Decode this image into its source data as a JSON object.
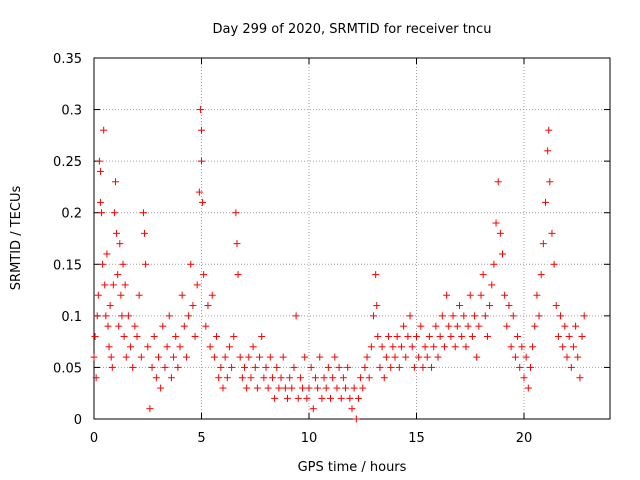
{
  "chart_data": {
    "type": "scatter",
    "title": "Day 299 of 2020, SRMTID for receiver tncu",
    "xlabel": "GPS time / hours",
    "ylabel": "SRMTID / TECUs",
    "xlim": [
      0,
      24
    ],
    "ylim": [
      0,
      0.35
    ],
    "x_ticks": [
      0,
      5,
      10,
      15,
      20
    ],
    "x_tick_labels": [
      "0",
      "5",
      "10",
      "15",
      "20"
    ],
    "y_ticks": [
      0,
      0.05,
      0.1,
      0.15,
      0.2,
      0.25,
      0.3,
      0.35
    ],
    "y_tick_labels": [
      "0",
      "0.05",
      "0.1",
      "0.15",
      "0.2",
      "0.25",
      "0.3",
      "0.35"
    ],
    "grid": true,
    "marker": "+",
    "series": [
      {
        "name": "SRMTID",
        "color": "#ff0000",
        "points": [
          [
            0.0,
            0.06
          ],
          [
            0.05,
            0.08
          ],
          [
            0.1,
            0.04
          ],
          [
            0.15,
            0.1
          ],
          [
            0.2,
            0.12
          ],
          [
            0.25,
            0.25
          ],
          [
            0.3,
            0.24
          ],
          [
            0.3,
            0.21
          ],
          [
            0.35,
            0.2
          ],
          [
            0.4,
            0.15
          ],
          [
            0.45,
            0.28
          ],
          [
            0.5,
            0.13
          ],
          [
            0.55,
            0.1
          ],
          [
            0.6,
            0.16
          ],
          [
            0.65,
            0.09
          ],
          [
            0.7,
            0.07
          ],
          [
            0.75,
            0.11
          ],
          [
            0.8,
            0.06
          ],
          [
            0.85,
            0.05
          ],
          [
            0.9,
            0.13
          ],
          [
            0.95,
            0.2
          ],
          [
            1.0,
            0.23
          ],
          [
            1.05,
            0.18
          ],
          [
            1.1,
            0.14
          ],
          [
            1.15,
            0.09
          ],
          [
            1.2,
            0.17
          ],
          [
            1.25,
            0.12
          ],
          [
            1.3,
            0.1
          ],
          [
            1.35,
            0.15
          ],
          [
            1.4,
            0.08
          ],
          [
            1.45,
            0.13
          ],
          [
            1.5,
            0.06
          ],
          [
            1.6,
            0.1
          ],
          [
            1.7,
            0.07
          ],
          [
            1.8,
            0.05
          ],
          [
            1.9,
            0.09
          ],
          [
            2.0,
            0.08
          ],
          [
            2.1,
            0.12
          ],
          [
            2.2,
            0.06
          ],
          [
            2.3,
            0.2
          ],
          [
            2.35,
            0.18
          ],
          [
            2.4,
            0.15
          ],
          [
            2.5,
            0.07
          ],
          [
            2.6,
            0.01
          ],
          [
            2.7,
            0.05
          ],
          [
            2.8,
            0.08
          ],
          [
            2.9,
            0.04
          ],
          [
            3.0,
            0.06
          ],
          [
            3.1,
            0.03
          ],
          [
            3.2,
            0.09
          ],
          [
            3.3,
            0.05
          ],
          [
            3.4,
            0.07
          ],
          [
            3.5,
            0.1
          ],
          [
            3.6,
            0.04
          ],
          [
            3.7,
            0.06
          ],
          [
            3.8,
            0.08
          ],
          [
            3.9,
            0.05
          ],
          [
            4.0,
            0.07
          ],
          [
            4.1,
            0.12
          ],
          [
            4.2,
            0.09
          ],
          [
            4.3,
            0.06
          ],
          [
            4.4,
            0.1
          ],
          [
            4.5,
            0.15
          ],
          [
            4.6,
            0.11
          ],
          [
            4.7,
            0.08
          ],
          [
            4.8,
            0.13
          ],
          [
            4.9,
            0.22
          ],
          [
            4.95,
            0.3
          ],
          [
            5.0,
            0.28
          ],
          [
            5.0,
            0.25
          ],
          [
            5.05,
            0.21
          ],
          [
            5.1,
            0.14
          ],
          [
            5.2,
            0.09
          ],
          [
            5.3,
            0.11
          ],
          [
            5.4,
            0.07
          ],
          [
            5.5,
            0.12
          ],
          [
            5.6,
            0.06
          ],
          [
            5.7,
            0.08
          ],
          [
            5.8,
            0.04
          ],
          [
            5.9,
            0.05
          ],
          [
            6.0,
            0.03
          ],
          [
            6.1,
            0.06
          ],
          [
            6.2,
            0.04
          ],
          [
            6.3,
            0.07
          ],
          [
            6.4,
            0.05
          ],
          [
            6.5,
            0.08
          ],
          [
            6.6,
            0.2
          ],
          [
            6.65,
            0.17
          ],
          [
            6.7,
            0.14
          ],
          [
            6.8,
            0.06
          ],
          [
            6.9,
            0.04
          ],
          [
            7.0,
            0.05
          ],
          [
            7.1,
            0.03
          ],
          [
            7.2,
            0.06
          ],
          [
            7.3,
            0.04
          ],
          [
            7.4,
            0.07
          ],
          [
            7.5,
            0.05
          ],
          [
            7.6,
            0.03
          ],
          [
            7.7,
            0.06
          ],
          [
            7.8,
            0.08
          ],
          [
            7.9,
            0.04
          ],
          [
            8.0,
            0.05
          ],
          [
            8.1,
            0.03
          ],
          [
            8.2,
            0.06
          ],
          [
            8.3,
            0.04
          ],
          [
            8.4,
            0.02
          ],
          [
            8.5,
            0.05
          ],
          [
            8.6,
            0.03
          ],
          [
            8.7,
            0.04
          ],
          [
            8.8,
            0.06
          ],
          [
            8.9,
            0.03
          ],
          [
            9.0,
            0.02
          ],
          [
            9.1,
            0.04
          ],
          [
            9.2,
            0.03
          ],
          [
            9.3,
            0.05
          ],
          [
            9.4,
            0.1
          ],
          [
            9.5,
            0.02
          ],
          [
            9.6,
            0.04
          ],
          [
            9.7,
            0.03
          ],
          [
            9.8,
            0.06
          ],
          [
            9.9,
            0.02
          ],
          [
            10.0,
            0.03
          ],
          [
            10.1,
            0.05
          ],
          [
            10.2,
            0.01
          ],
          [
            10.3,
            0.04
          ],
          [
            10.4,
            0.03
          ],
          [
            10.5,
            0.06
          ],
          [
            10.6,
            0.02
          ],
          [
            10.7,
            0.04
          ],
          [
            10.8,
            0.03
          ],
          [
            10.9,
            0.05
          ],
          [
            11.0,
            0.02
          ],
          [
            11.1,
            0.04
          ],
          [
            11.2,
            0.06
          ],
          [
            11.3,
            0.03
          ],
          [
            11.4,
            0.05
          ],
          [
            11.5,
            0.02
          ],
          [
            11.6,
            0.04
          ],
          [
            11.7,
            0.03
          ],
          [
            11.8,
            0.05
          ],
          [
            11.9,
            0.02
          ],
          [
            12.0,
            0.01
          ],
          [
            12.1,
            0.03
          ],
          [
            12.2,
            0.0
          ],
          [
            12.3,
            0.02
          ],
          [
            12.4,
            0.04
          ],
          [
            12.5,
            0.03
          ],
          [
            12.6,
            0.05
          ],
          [
            12.7,
            0.06
          ],
          [
            12.8,
            0.04
          ],
          [
            12.9,
            0.07
          ],
          [
            13.0,
            0.1
          ],
          [
            13.1,
            0.14
          ],
          [
            13.15,
            0.11
          ],
          [
            13.2,
            0.08
          ],
          [
            13.3,
            0.05
          ],
          [
            13.4,
            0.07
          ],
          [
            13.5,
            0.04
          ],
          [
            13.6,
            0.06
          ],
          [
            13.7,
            0.08
          ],
          [
            13.8,
            0.05
          ],
          [
            13.9,
            0.07
          ],
          [
            14.0,
            0.06
          ],
          [
            14.1,
            0.08
          ],
          [
            14.2,
            0.05
          ],
          [
            14.3,
            0.07
          ],
          [
            14.4,
            0.09
          ],
          [
            14.5,
            0.06
          ],
          [
            14.6,
            0.08
          ],
          [
            14.7,
            0.1
          ],
          [
            14.8,
            0.07
          ],
          [
            14.9,
            0.05
          ],
          [
            15.0,
            0.08
          ],
          [
            15.1,
            0.06
          ],
          [
            15.2,
            0.09
          ],
          [
            15.3,
            0.05
          ],
          [
            15.4,
            0.07
          ],
          [
            15.5,
            0.06
          ],
          [
            15.6,
            0.08
          ],
          [
            15.7,
            0.05
          ],
          [
            15.8,
            0.07
          ],
          [
            15.9,
            0.09
          ],
          [
            16.0,
            0.06
          ],
          [
            16.1,
            0.08
          ],
          [
            16.2,
            0.1
          ],
          [
            16.3,
            0.07
          ],
          [
            16.4,
            0.12
          ],
          [
            16.5,
            0.09
          ],
          [
            16.6,
            0.08
          ],
          [
            16.7,
            0.1
          ],
          [
            16.8,
            0.07
          ],
          [
            16.9,
            0.09
          ],
          [
            17.0,
            0.11
          ],
          [
            17.1,
            0.08
          ],
          [
            17.2,
            0.1
          ],
          [
            17.3,
            0.07
          ],
          [
            17.4,
            0.09
          ],
          [
            17.5,
            0.12
          ],
          [
            17.6,
            0.08
          ],
          [
            17.7,
            0.1
          ],
          [
            17.8,
            0.06
          ],
          [
            17.9,
            0.09
          ],
          [
            18.0,
            0.12
          ],
          [
            18.1,
            0.14
          ],
          [
            18.2,
            0.1
          ],
          [
            18.3,
            0.08
          ],
          [
            18.4,
            0.11
          ],
          [
            18.5,
            0.13
          ],
          [
            18.6,
            0.15
          ],
          [
            18.7,
            0.19
          ],
          [
            18.8,
            0.23
          ],
          [
            18.9,
            0.18
          ],
          [
            19.0,
            0.16
          ],
          [
            19.1,
            0.12
          ],
          [
            19.2,
            0.09
          ],
          [
            19.3,
            0.11
          ],
          [
            19.4,
            0.07
          ],
          [
            19.5,
            0.1
          ],
          [
            19.6,
            0.06
          ],
          [
            19.7,
            0.08
          ],
          [
            19.8,
            0.05
          ],
          [
            19.9,
            0.07
          ],
          [
            20.0,
            0.04
          ],
          [
            20.1,
            0.06
          ],
          [
            20.2,
            0.03
          ],
          [
            20.3,
            0.05
          ],
          [
            20.4,
            0.07
          ],
          [
            20.5,
            0.09
          ],
          [
            20.6,
            0.12
          ],
          [
            20.7,
            0.1
          ],
          [
            20.8,
            0.14
          ],
          [
            20.9,
            0.17
          ],
          [
            21.0,
            0.21
          ],
          [
            21.1,
            0.26
          ],
          [
            21.15,
            0.28
          ],
          [
            21.2,
            0.23
          ],
          [
            21.3,
            0.18
          ],
          [
            21.4,
            0.15
          ],
          [
            21.5,
            0.11
          ],
          [
            21.6,
            0.08
          ],
          [
            21.7,
            0.1
          ],
          [
            21.8,
            0.07
          ],
          [
            21.9,
            0.09
          ],
          [
            22.0,
            0.06
          ],
          [
            22.1,
            0.08
          ],
          [
            22.2,
            0.05
          ],
          [
            22.3,
            0.07
          ],
          [
            22.4,
            0.09
          ],
          [
            22.5,
            0.06
          ],
          [
            22.6,
            0.04
          ],
          [
            22.7,
            0.08
          ],
          [
            22.8,
            0.1
          ]
        ]
      }
    ]
  }
}
